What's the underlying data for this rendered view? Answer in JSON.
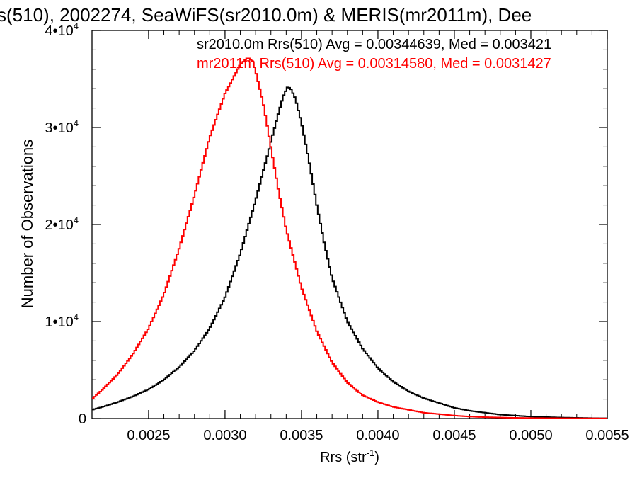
{
  "chart_data": {
    "type": "line",
    "title": "s(510), 2002274, SeaWiFS(sr2010.0m) & MERIS(mr2011m), Dee",
    "xlabel": "Rrs (str",
    "xlabel_sup": "-1",
    "xlabel_close": ")",
    "ylabel": "Number of Observations",
    "xlim": [
      0.00213,
      0.0055
    ],
    "ylim": [
      0,
      40000
    ],
    "xticks": [
      {
        "value": 0.0025,
        "label": "0.0025"
      },
      {
        "value": 0.003,
        "label": "0.0030"
      },
      {
        "value": 0.0035,
        "label": "0.0035"
      },
      {
        "value": 0.004,
        "label": "0.0040"
      },
      {
        "value": 0.0045,
        "label": "0.0045"
      },
      {
        "value": 0.005,
        "label": "0.0050"
      },
      {
        "value": 0.0055,
        "label": "0.0055"
      }
    ],
    "yticks": [
      {
        "value": 0,
        "label": "0",
        "sup": ""
      },
      {
        "value": 10000,
        "label": "1•10",
        "sup": "4"
      },
      {
        "value": 20000,
        "label": "2•10",
        "sup": "4"
      },
      {
        "value": 30000,
        "label": "3•10",
        "sup": "4"
      },
      {
        "value": 40000,
        "label": "4•10",
        "sup": "4"
      }
    ],
    "series": [
      {
        "name": "sr2010.0m Rrs(510) Avg = 0.00344639, Med = 0.003421",
        "color": "#000000",
        "points": [
          [
            0.00213,
            900
          ],
          [
            0.0022,
            1200
          ],
          [
            0.0023,
            1700
          ],
          [
            0.0024,
            2300
          ],
          [
            0.0025,
            3000
          ],
          [
            0.0026,
            4000
          ],
          [
            0.0027,
            5300
          ],
          [
            0.0028,
            7000
          ],
          [
            0.0029,
            9300
          ],
          [
            0.003,
            12500
          ],
          [
            0.0031,
            17000
          ],
          [
            0.0032,
            22500
          ],
          [
            0.00325,
            25500
          ],
          [
            0.0033,
            28500
          ],
          [
            0.00335,
            31500
          ],
          [
            0.00338,
            33200
          ],
          [
            0.00341,
            34200
          ],
          [
            0.00343,
            34000
          ],
          [
            0.00346,
            33000
          ],
          [
            0.0035,
            30500
          ],
          [
            0.00355,
            26500
          ],
          [
            0.0036,
            22000
          ],
          [
            0.00365,
            18000
          ],
          [
            0.0037,
            14500
          ],
          [
            0.0038,
            10000
          ],
          [
            0.0039,
            7200
          ],
          [
            0.004,
            5200
          ],
          [
            0.0041,
            3800
          ],
          [
            0.0042,
            2800
          ],
          [
            0.0043,
            2100
          ],
          [
            0.0044,
            1600
          ],
          [
            0.0045,
            1100
          ],
          [
            0.0046,
            800
          ],
          [
            0.0047,
            600
          ],
          [
            0.0048,
            400
          ],
          [
            0.0049,
            300
          ],
          [
            0.005,
            200
          ],
          [
            0.0051,
            150
          ],
          [
            0.0052,
            100
          ],
          [
            0.0053,
            70
          ],
          [
            0.0054,
            40
          ],
          [
            0.0055,
            20
          ]
        ]
      },
      {
        "name": "mr2011m Rrs(510) Avg = 0.00314580, Med = 0.0031427",
        "color": "#ff0000",
        "points": [
          [
            0.00213,
            2000
          ],
          [
            0.0022,
            3000
          ],
          [
            0.0023,
            4600
          ],
          [
            0.0024,
            6700
          ],
          [
            0.0025,
            9300
          ],
          [
            0.0026,
            12800
          ],
          [
            0.0027,
            17500
          ],
          [
            0.0028,
            23000
          ],
          [
            0.0029,
            29000
          ],
          [
            0.003,
            33500
          ],
          [
            0.0031,
            36500
          ],
          [
            0.00315,
            37200
          ],
          [
            0.00318,
            36800
          ],
          [
            0.0032,
            35800
          ],
          [
            0.00325,
            32500
          ],
          [
            0.0033,
            28000
          ],
          [
            0.00335,
            23500
          ],
          [
            0.0034,
            19500
          ],
          [
            0.0035,
            13500
          ],
          [
            0.0036,
            9000
          ],
          [
            0.0037,
            5800
          ],
          [
            0.0038,
            3700
          ],
          [
            0.0039,
            2400
          ],
          [
            0.004,
            1700
          ],
          [
            0.0041,
            1200
          ],
          [
            0.0042,
            900
          ],
          [
            0.0043,
            600
          ],
          [
            0.0044,
            450
          ],
          [
            0.0045,
            300
          ],
          [
            0.0046,
            200
          ],
          [
            0.0047,
            140
          ],
          [
            0.0048,
            100
          ],
          [
            0.0049,
            70
          ],
          [
            0.005,
            50
          ],
          [
            0.0052,
            30
          ],
          [
            0.0055,
            10
          ]
        ]
      }
    ],
    "legend_placement": "top-right (text only)",
    "grid": false
  }
}
